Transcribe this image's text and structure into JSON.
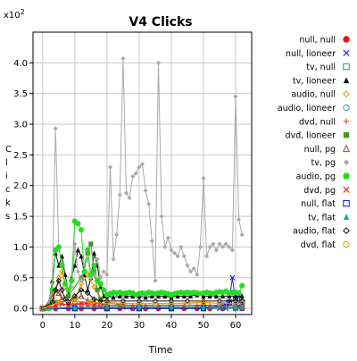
{
  "chart_data": {
    "type": "scatter",
    "title": "V4 Clicks",
    "xlabel": "Time",
    "ylabel": "Clicks",
    "y_multiplier": "x10",
    "y_multiplier_exp": "2",
    "xlim": [
      -3,
      65
    ],
    "ylim": [
      -0.1,
      4.5
    ],
    "x_ticks": [
      0,
      10,
      20,
      30,
      40,
      50,
      60
    ],
    "x_tick_labels": [
      "0",
      "10",
      "20",
      "30",
      "40",
      "50",
      "60"
    ],
    "y_ticks": [
      0,
      0.5,
      1,
      1.5,
      2,
      2.5,
      3,
      3.5,
      4
    ],
    "y_tick_labels": [
      "0.0",
      "0.5",
      "1.0",
      "1.5",
      "2.0",
      "2.5",
      "3.0",
      "3.5",
      "4.0"
    ],
    "grid": true,
    "legend_position": "right",
    "series": [
      {
        "name": "null, null",
        "marker": "circle-filled",
        "color": "#ee1111",
        "x": [
          0,
          4,
          8,
          12,
          16,
          20,
          24,
          28,
          32,
          36,
          40,
          44,
          48,
          52,
          56,
          60,
          62
        ],
        "y": [
          0,
          0,
          0,
          0,
          0,
          0,
          0,
          0,
          0,
          0,
          0,
          0,
          0,
          0,
          0,
          0,
          0
        ]
      },
      {
        "name": "null, lioneer",
        "marker": "x",
        "color": "#2222dd",
        "x": [
          0,
          10,
          20,
          30,
          40,
          50,
          55,
          57,
          58,
          59,
          60,
          61,
          62
        ],
        "y": [
          0,
          0,
          0,
          0,
          0,
          0,
          0,
          0,
          0.1,
          0.5,
          0.1,
          0.2,
          0
        ]
      },
      {
        "name": "tv, null",
        "marker": "square-open",
        "color": "#119988",
        "x": [
          0,
          10,
          20,
          30,
          40,
          50,
          60,
          62
        ],
        "y": [
          0,
          0,
          0,
          0,
          0,
          0,
          0,
          0.05
        ]
      },
      {
        "name": "tv, lioneer",
        "marker": "triangle-filled",
        "color": "#111111",
        "x": [
          0,
          1,
          2,
          3,
          4,
          5,
          6,
          7,
          8,
          9,
          10,
          11,
          12,
          13,
          14,
          15,
          16,
          17,
          18,
          19,
          20,
          22,
          24,
          26,
          28,
          30,
          32,
          34,
          36,
          38,
          40,
          42,
          44,
          46,
          48,
          50,
          52,
          54,
          56,
          58,
          60,
          62
        ],
        "y": [
          0,
          0,
          0.1,
          0.45,
          0.9,
          0.7,
          0.85,
          0.55,
          0.25,
          0.5,
          0.7,
          0.95,
          0.85,
          0.55,
          0.3,
          0.5,
          0.9,
          0.7,
          0.35,
          0.2,
          0.2,
          0.18,
          0.2,
          0.2,
          0.2,
          0.2,
          0.18,
          0.2,
          0.2,
          0.2,
          0.18,
          0.2,
          0.2,
          0.2,
          0.22,
          0.2,
          0.2,
          0.2,
          0.2,
          0.2,
          0.2,
          0.2
        ]
      },
      {
        "name": "audio, null",
        "marker": "diamond-open",
        "color": "#ee9900",
        "x": [
          0,
          3,
          4,
          5,
          6,
          7,
          8,
          10,
          12,
          14,
          16,
          18,
          20,
          25,
          30,
          40,
          50,
          55,
          60,
          62
        ],
        "y": [
          0,
          0.1,
          0.3,
          0.5,
          0.6,
          0.35,
          0.2,
          0.15,
          0.4,
          0.55,
          0.35,
          0.15,
          0.1,
          0.08,
          0.08,
          0.08,
          0.1,
          0.08,
          0.08,
          0.08
        ]
      },
      {
        "name": "audio, lioneer",
        "marker": "circle-open",
        "color": "#449999",
        "x": [
          0,
          5,
          10,
          15,
          20,
          25,
          30,
          35,
          40,
          45,
          50,
          55,
          60,
          62
        ],
        "y": [
          0,
          0.05,
          0.08,
          0.1,
          0.05,
          0.05,
          0.05,
          0.05,
          0.05,
          0.05,
          0.05,
          0.05,
          0.05,
          0.05
        ]
      },
      {
        "name": "dvd, null",
        "marker": "plus",
        "color": "#ee5522",
        "x": [
          0,
          4,
          8,
          12,
          16,
          20,
          24,
          28,
          32,
          36,
          40,
          44,
          48,
          52,
          56,
          60,
          62
        ],
        "y": [
          0,
          0.1,
          0.05,
          0.08,
          0.1,
          0.05,
          0.05,
          0.05,
          0.05,
          0.05,
          0.05,
          0.05,
          0.05,
          0.05,
          0.05,
          0.05,
          0.05
        ]
      },
      {
        "name": "dvd, lioneer",
        "marker": "square-filled",
        "color": "#449922",
        "x": [
          0,
          4,
          8,
          12,
          14,
          15,
          16,
          17,
          18,
          20,
          25,
          30,
          40,
          50,
          60,
          62
        ],
        "y": [
          0,
          0.1,
          0.2,
          0.5,
          0.9,
          1.05,
          0.6,
          0.3,
          0.15,
          0.1,
          0.05,
          0.05,
          0.05,
          0.05,
          0.05,
          0.05
        ]
      },
      {
        "name": "null, pg",
        "marker": "triangle-open",
        "color": "#994433",
        "x": [
          0,
          2,
          3,
          4,
          5,
          6,
          8,
          10,
          12,
          14,
          16,
          18,
          20,
          25,
          30,
          40,
          50,
          60,
          62
        ],
        "y": [
          0,
          0.1,
          0.2,
          0.3,
          0.25,
          0.15,
          0.1,
          0.15,
          0.2,
          0.12,
          0.1,
          0.08,
          0.05,
          0.05,
          0.05,
          0.05,
          0.05,
          0.05,
          0.05
        ]
      },
      {
        "name": "tv, pg",
        "marker": "diamond-filled",
        "color": "#aaaaaa",
        "x": [
          0,
          1,
          2,
          3,
          4,
          5,
          6,
          7,
          8,
          9,
          10,
          11,
          12,
          13,
          14,
          15,
          16,
          17,
          18,
          19,
          20,
          21,
          22,
          23,
          24,
          25,
          26,
          27,
          28,
          29,
          30,
          31,
          32,
          33,
          34,
          35,
          36,
          37,
          38,
          39,
          40,
          41,
          42,
          43,
          44,
          45,
          46,
          47,
          48,
          49,
          50,
          51,
          52,
          53,
          54,
          55,
          56,
          57,
          58,
          59,
          60,
          61,
          62
        ],
        "y": [
          0,
          0,
          0.1,
          0.4,
          2.93,
          1.0,
          0.7,
          0.4,
          0.3,
          0.35,
          1.05,
          0.6,
          0.45,
          0.7,
          0.8,
          0.5,
          0.55,
          0.8,
          0.5,
          0.6,
          0.55,
          2.3,
          0.8,
          1.2,
          1.85,
          4.07,
          1.88,
          1.8,
          2.15,
          2.2,
          2.3,
          2.35,
          1.92,
          1.7,
          1.1,
          0.45,
          4.0,
          1.5,
          1.0,
          1.15,
          0.95,
          0.9,
          0.85,
          1.0,
          0.85,
          0.7,
          0.6,
          0.65,
          0.55,
          1.0,
          2.12,
          0.85,
          1.0,
          1.05,
          0.95,
          1.05,
          1.0,
          1.05,
          1.0,
          0.95,
          3.45,
          1.45,
          1.2
        ]
      },
      {
        "name": "audio, pg",
        "marker": "circle-filled",
        "color": "#22dd22",
        "x": [
          0,
          1,
          2,
          3,
          4,
          5,
          6,
          7,
          8,
          9,
          10,
          11,
          12,
          13,
          14,
          15,
          16,
          17,
          18,
          19,
          20,
          21,
          22,
          23,
          24,
          25,
          26,
          27,
          28,
          29,
          30,
          31,
          32,
          33,
          34,
          35,
          36,
          37,
          38,
          39,
          40,
          41,
          42,
          43,
          44,
          45,
          46,
          47,
          48,
          49,
          50,
          51,
          52,
          53,
          54,
          55,
          56,
          57,
          58,
          59,
          60,
          61,
          62
        ],
        "y": [
          0,
          0,
          0,
          0.3,
          0.95,
          1.0,
          0.7,
          0.4,
          0.3,
          0.45,
          1.42,
          1.38,
          1.28,
          0.6,
          0.95,
          0.55,
          0.7,
          0.45,
          0.4,
          0.3,
          0.22,
          0.24,
          0.26,
          0.25,
          0.26,
          0.24,
          0.25,
          0.26,
          0.25,
          0.22,
          0.24,
          0.25,
          0.24,
          0.26,
          0.25,
          0.24,
          0.25,
          0.26,
          0.25,
          0.24,
          0.22,
          0.24,
          0.25,
          0.26,
          0.25,
          0.26,
          0.25,
          0.26,
          0.25,
          0.24,
          0.25,
          0.26,
          0.25,
          0.24,
          0.26,
          0.27,
          0.26,
          0.28,
          0.25,
          0.26,
          0.26,
          0.25,
          0.37
        ]
      },
      {
        "name": "dvd, pg",
        "marker": "x",
        "color": "#ee2222",
        "x": [
          0,
          2,
          4,
          6,
          8,
          10,
          12,
          14,
          16,
          18,
          20,
          25,
          30,
          40,
          50,
          60,
          62
        ],
        "y": [
          0,
          0.02,
          0.05,
          0.08,
          0.05,
          0.05,
          0.08,
          0.05,
          0.05,
          0.03,
          0.02,
          0.02,
          0.02,
          0.02,
          0.02,
          0.02,
          0.02
        ]
      },
      {
        "name": "null, flat",
        "marker": "square-open",
        "color": "#1111cc",
        "x": [
          0,
          10,
          20,
          30,
          40,
          50,
          56,
          58,
          60,
          61,
          62
        ],
        "y": [
          0,
          0,
          0,
          0,
          0,
          0,
          0.05,
          0.1,
          0.15,
          0.08,
          0.1
        ]
      },
      {
        "name": "tv, flat",
        "marker": "triangle-filled",
        "color": "#11aaaa",
        "x": [
          0,
          10,
          20,
          30,
          40,
          50,
          60,
          62
        ],
        "y": [
          0,
          0.02,
          0.02,
          0.02,
          0.02,
          0.02,
          0.02,
          0.02
        ]
      },
      {
        "name": "audio, flat",
        "marker": "diamond-open",
        "color": "#111111",
        "x": [
          0,
          3,
          4,
          5,
          6,
          7,
          8,
          10,
          12,
          14,
          16,
          18,
          20,
          25,
          30,
          35,
          40,
          45,
          50,
          55,
          60,
          62
        ],
        "y": [
          0,
          0.1,
          0.3,
          0.45,
          0.3,
          0.15,
          0.1,
          0.2,
          0.3,
          0.25,
          0.15,
          0.12,
          0.12,
          0.12,
          0.12,
          0.12,
          0.12,
          0.12,
          0.12,
          0.12,
          0.12,
          0.12
        ]
      },
      {
        "name": "dvd, flat",
        "marker": "circle-open",
        "color": "#ee9900",
        "x": [
          0,
          5,
          10,
          15,
          20,
          25,
          30,
          35,
          40,
          45,
          50,
          55,
          60,
          62
        ],
        "y": [
          0,
          0.1,
          0.12,
          0.1,
          0.08,
          0.08,
          0.08,
          0.08,
          0.08,
          0.08,
          0.1,
          0.08,
          0.08,
          0.08
        ]
      }
    ]
  }
}
